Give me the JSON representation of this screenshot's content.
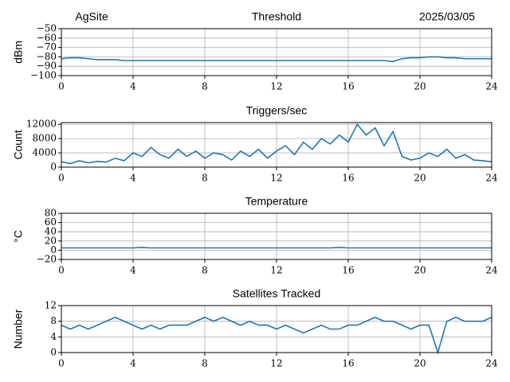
{
  "chart_data": [
    {
      "type": "line",
      "site": "AgSite",
      "title": "Threshold",
      "date": "2025/03/05",
      "ylabel": "dBm",
      "color": "#1f77b4",
      "grid": true,
      "x": [
        0,
        0.5,
        1,
        1.5,
        2,
        2.5,
        3,
        3.5,
        4,
        4.5,
        5,
        5.5,
        6,
        6.5,
        7,
        7.5,
        8,
        8.5,
        9,
        9.5,
        10,
        10.5,
        11,
        11.5,
        12,
        12.5,
        13,
        13.5,
        14,
        14.5,
        15,
        15.5,
        16,
        16.5,
        17,
        17.5,
        18,
        18.5,
        19,
        19.5,
        20,
        20.5,
        21,
        21.5,
        22,
        22.5,
        23,
        23.5,
        24
      ],
      "values": [
        -82,
        -81,
        -81,
        -82,
        -83,
        -83,
        -83,
        -84,
        -84,
        -84,
        -84,
        -84,
        -84,
        -84,
        -84,
        -84,
        -84,
        -84,
        -84,
        -84,
        -84,
        -84,
        -84,
        -84,
        -84,
        -84,
        -84,
        -84,
        -84,
        -84,
        -84,
        -84,
        -84,
        -84,
        -84,
        -84,
        -84,
        -85,
        -82,
        -81,
        -81,
        -80,
        -80,
        -81,
        -81,
        -82,
        -82,
        -82,
        -82
      ],
      "xlim": [
        0,
        24
      ],
      "xticks": [
        0,
        4,
        8,
        12,
        16,
        20,
        24
      ],
      "ylim": [
        -100,
        -50
      ],
      "yticks": [
        {
          "value": -50,
          "label": "−50"
        },
        {
          "value": -60,
          "label": "−60"
        },
        {
          "value": -70,
          "label": "−70"
        },
        {
          "value": -80,
          "label": "−80"
        },
        {
          "value": -90,
          "label": "−90"
        },
        {
          "value": -100,
          "label": "−100"
        }
      ]
    },
    {
      "type": "line",
      "title": "Triggers/sec",
      "ylabel": "Count",
      "color": "#1f77b4",
      "grid": true,
      "x": [
        0,
        0.5,
        1,
        1.5,
        2,
        2.5,
        3,
        3.5,
        4,
        4.5,
        5,
        5.5,
        6,
        6.5,
        7,
        7.5,
        8,
        8.5,
        9,
        9.5,
        10,
        10.5,
        11,
        11.5,
        12,
        12.5,
        13,
        13.5,
        14,
        14.5,
        15,
        15.5,
        16,
        16.5,
        17,
        17.5,
        18,
        18.5,
        19,
        19.5,
        20,
        20.5,
        21,
        21.5,
        22,
        22.5,
        23,
        23.5,
        24
      ],
      "values": [
        1500,
        1000,
        1800,
        1200,
        1600,
        1400,
        2500,
        1800,
        4000,
        3000,
        5500,
        3500,
        2500,
        5000,
        3000,
        4500,
        2500,
        4000,
        3500,
        2000,
        4500,
        3000,
        5000,
        2500,
        4500,
        6000,
        3500,
        7000,
        5000,
        8000,
        6500,
        9000,
        7000,
        12000,
        9000,
        11000,
        6000,
        10000,
        3000,
        2000,
        2500,
        4000,
        3000,
        5000,
        2500,
        3500,
        2000,
        1800,
        1500
      ],
      "xlim": [
        0,
        24
      ],
      "xticks": [
        0,
        4,
        8,
        12,
        16,
        20,
        24
      ],
      "ylim": [
        0,
        12500
      ],
      "yticks": [
        0,
        4000,
        8000,
        12000
      ]
    },
    {
      "type": "line",
      "title": "Temperature",
      "ylabel": "°C",
      "color": "#1f77b4",
      "grid": true,
      "x": [
        0,
        0.5,
        1,
        1.5,
        2,
        2.5,
        3,
        3.5,
        4,
        4.5,
        5,
        5.5,
        6,
        6.5,
        7,
        7.5,
        8,
        8.5,
        9,
        9.5,
        10,
        10.5,
        11,
        11.5,
        12,
        12.5,
        13,
        13.5,
        14,
        14.5,
        15,
        15.5,
        16,
        16.5,
        17,
        17.5,
        18,
        18.5,
        19,
        19.5,
        20,
        20.5,
        21,
        21.5,
        22,
        22.5,
        23,
        23.5,
        24
      ],
      "values": [
        5,
        5,
        5,
        5,
        5,
        5,
        5,
        5,
        5,
        6,
        5,
        5,
        5,
        5,
        5,
        5,
        5,
        5,
        5,
        5,
        5,
        5,
        5,
        5,
        5,
        5,
        5,
        5,
        5,
        5,
        5,
        6,
        5,
        5,
        5,
        5,
        5,
        5,
        5,
        5,
        5,
        5,
        5,
        5,
        5,
        5,
        5,
        5,
        5
      ],
      "xlim": [
        0,
        24
      ],
      "xticks": [
        0,
        4,
        8,
        12,
        16,
        20,
        24
      ],
      "ylim": [
        -20,
        80
      ],
      "yticks": [
        {
          "value": -20,
          "label": "−20"
        },
        0,
        20,
        40,
        60,
        80
      ]
    },
    {
      "type": "line",
      "title": "Satellites Tracked",
      "ylabel": "Number",
      "color": "#1f77b4",
      "grid": true,
      "x": [
        0,
        0.5,
        1,
        1.5,
        2,
        2.5,
        3,
        3.5,
        4,
        4.5,
        5,
        5.5,
        6,
        6.5,
        7,
        7.5,
        8,
        8.5,
        9,
        9.5,
        10,
        10.5,
        11,
        11.5,
        12,
        12.5,
        13,
        13.5,
        14,
        14.5,
        15,
        15.5,
        16,
        16.5,
        17,
        17.5,
        18,
        18.5,
        19,
        19.5,
        20,
        20.5,
        21,
        21.5,
        22,
        22.5,
        23,
        23.5,
        24
      ],
      "values": [
        7,
        6,
        7,
        6,
        7,
        8,
        9,
        8,
        7,
        6,
        7,
        6,
        7,
        7,
        7,
        8,
        9,
        8,
        9,
        8,
        7,
        8,
        7,
        7,
        6,
        7,
        6,
        5,
        6,
        7,
        6,
        6,
        7,
        7,
        8,
        9,
        8,
        8,
        7,
        6,
        7,
        7,
        0,
        8,
        9,
        8,
        8,
        8,
        9
      ],
      "xlim": [
        0,
        24
      ],
      "xticks": [
        0,
        4,
        8,
        12,
        16,
        20,
        24
      ],
      "ylim": [
        0,
        12
      ],
      "yticks": [
        0,
        4,
        8,
        12
      ]
    }
  ]
}
